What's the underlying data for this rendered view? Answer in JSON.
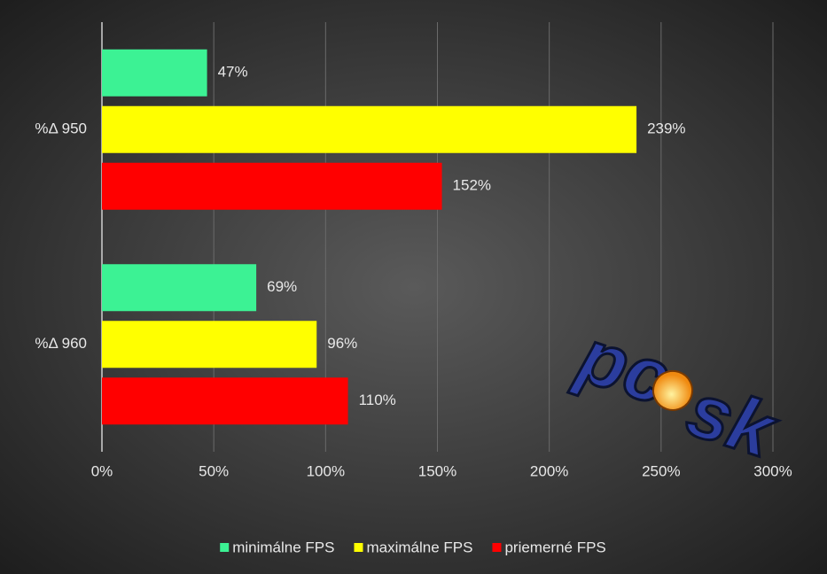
{
  "chart_data": {
    "type": "hbar",
    "categories": [
      "%Δ 950",
      "%Δ 960"
    ],
    "series": [
      {
        "name": "minimálne FPS",
        "color": "#3cf294",
        "values": [
          47,
          69
        ],
        "value_labels": [
          "47%",
          "69%"
        ]
      },
      {
        "name": "maximálne FPS",
        "color": "#ffff00",
        "values": [
          239,
          96
        ],
        "value_labels": [
          "239%",
          "96%"
        ]
      },
      {
        "name": "priemerné FPS",
        "color": "#ff0000",
        "values": [
          152,
          110
        ],
        "value_labels": [
          "152%",
          "110%"
        ]
      }
    ],
    "xlim": [
      0,
      300
    ],
    "xticks": [
      {
        "value": 0,
        "label": "0%"
      },
      {
        "value": 50,
        "label": "50%"
      },
      {
        "value": 100,
        "label": "100%"
      },
      {
        "value": 150,
        "label": "150%"
      },
      {
        "value": 200,
        "label": "200%"
      },
      {
        "value": 250,
        "label": "250%"
      },
      {
        "value": 300,
        "label": "300%"
      }
    ],
    "grid": true,
    "legend": "bottom",
    "watermark": [
      "pc",
      "sk"
    ]
  }
}
